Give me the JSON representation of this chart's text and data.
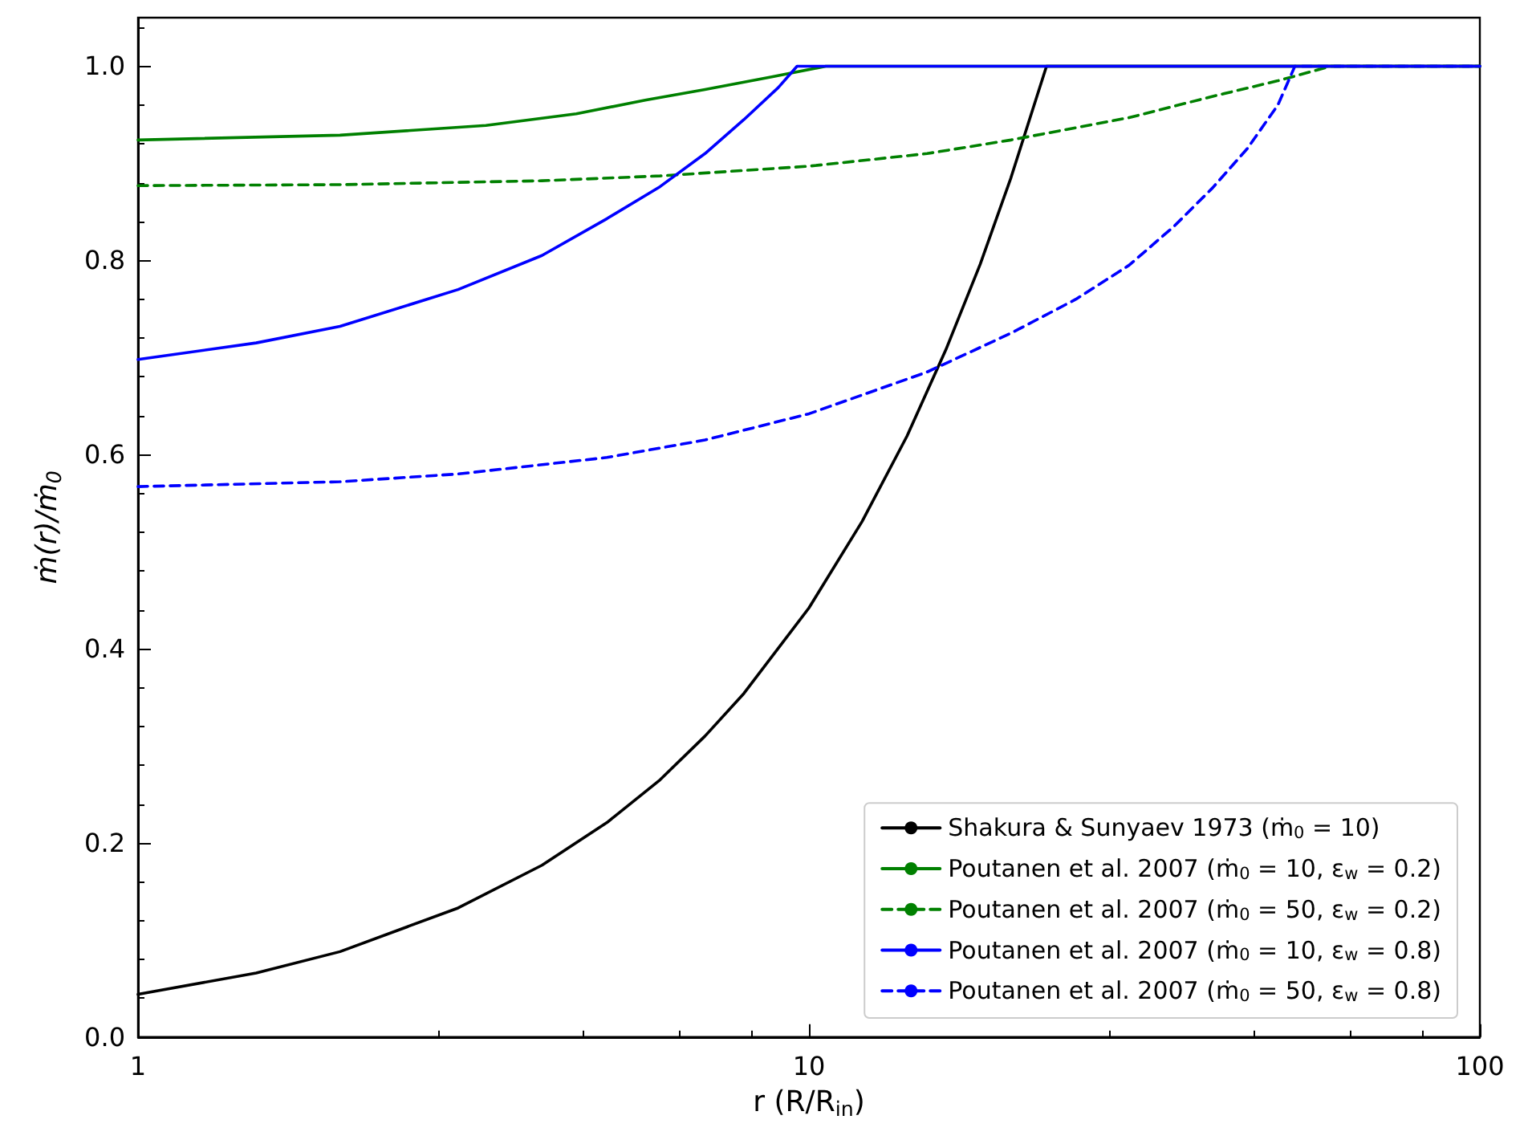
{
  "chart_data": {
    "type": "line",
    "xlabel": "r (R/R$_{in}$)",
    "ylabel": "ṁ(r)/ṁ$_{0}$",
    "log": "x",
    "xlim": [
      1,
      100
    ],
    "xticks": [
      1,
      10,
      100
    ],
    "ylim": [
      0,
      1.05
    ],
    "yticks": [
      {
        "value": 0,
        "label": "0.0"
      },
      {
        "value": 0.2,
        "label": "0.2"
      },
      {
        "value": 0.4,
        "label": "0.4"
      },
      {
        "value": 0.6,
        "label": "0.6"
      },
      {
        "value": 0.8,
        "label": "0.8"
      },
      {
        "value": 1,
        "label": "1.0"
      }
    ],
    "grid": false,
    "legend": "bottom right",
    "marker": "none",
    "series": [
      {
        "name": "Shakura & Sunyaev 1973 (ṁ$_{0}$ = 10)",
        "color": "#000000",
        "line_style": "solid",
        "x": [
          1,
          1.5,
          2,
          3,
          4,
          5,
          6,
          7,
          8,
          10,
          12,
          14,
          16,
          18,
          20,
          22.6,
          100
        ],
        "values": [
          0.044,
          0.066,
          0.088,
          0.133,
          0.177,
          0.221,
          0.265,
          0.31,
          0.354,
          0.442,
          0.531,
          0.619,
          0.708,
          0.796,
          0.885,
          1,
          1
        ]
      },
      {
        "name": "Poutanen et al. 2007 (ṁ$_{0}$ = 10, ε$_{w}$ = 0.2)",
        "color": "#008000",
        "line_style": "solid",
        "x": [
          1,
          2,
          3.3,
          4.5,
          5.7,
          7,
          8.8,
          10.6,
          100
        ],
        "values": [
          0.924,
          0.929,
          0.939,
          0.951,
          0.965,
          0.976,
          0.989,
          1,
          1
        ]
      },
      {
        "name": "Poutanen et al. 2007 (ṁ$_{0}$ = 50, ε$_{w}$ = 0.2)",
        "color": "#008000",
        "line_style": "dashed",
        "x": [
          1,
          2,
          4,
          6,
          10,
          15,
          20,
          30,
          40,
          50,
          60,
          100
        ],
        "values": [
          0.877,
          0.878,
          0.882,
          0.887,
          0.897,
          0.91,
          0.924,
          0.947,
          0.969,
          0.985,
          1,
          1
        ]
      },
      {
        "name": "Poutanen et al. 2007 (ṁ$_{0}$ = 10, ε$_{w}$ = 0.8)",
        "color": "#0000ff",
        "line_style": "solid",
        "x": [
          1,
          1.5,
          2,
          3,
          4,
          5,
          6,
          7,
          8,
          9,
          9.6,
          100
        ],
        "values": [
          0.698,
          0.715,
          0.732,
          0.77,
          0.805,
          0.843,
          0.876,
          0.91,
          0.945,
          0.978,
          1,
          1
        ]
      },
      {
        "name": "Poutanen et al. 2007 (ṁ$_{0}$ = 50, ε$_{w}$ = 0.8)",
        "color": "#0000ff",
        "line_style": "dashed",
        "x": [
          1,
          2,
          3,
          5,
          7,
          10,
          15,
          20,
          25,
          30,
          35,
          40,
          45,
          50,
          53,
          100
        ],
        "values": [
          0.567,
          0.572,
          0.58,
          0.597,
          0.615,
          0.642,
          0.685,
          0.725,
          0.76,
          0.795,
          0.835,
          0.875,
          0.915,
          0.96,
          1,
          1
        ]
      }
    ]
  }
}
